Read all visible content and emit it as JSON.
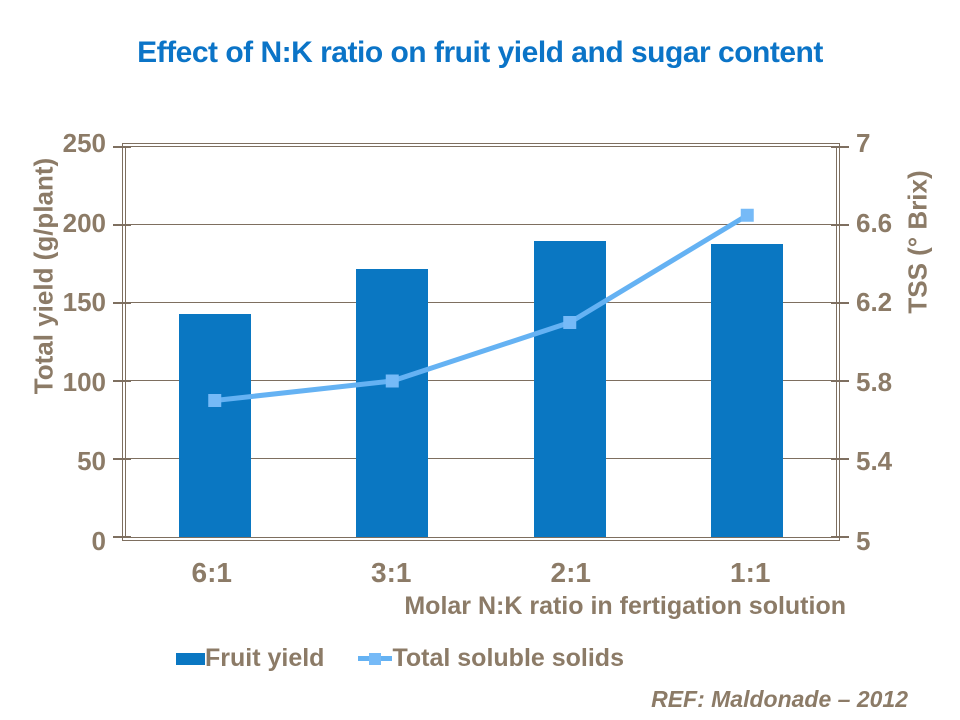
{
  "title": "Effect of N:K ratio on fruit yield and sugar content",
  "chart_data": {
    "type": "bar",
    "subtype": "bar-line combo, dual y-axes",
    "categories": [
      "6:1",
      "3:1",
      "2:1",
      "1:1"
    ],
    "series": [
      {
        "name": "Fruit yield",
        "type": "bar",
        "axis": "left",
        "values": [
          143,
          172,
          190,
          188
        ]
      },
      {
        "name": "Total soluble solids",
        "type": "line",
        "axis": "right",
        "values": [
          5.7,
          5.8,
          6.1,
          6.65
        ]
      }
    ],
    "xlabel": "Molar N:K ratio in fertigation solution",
    "ylabel_left": "Total yield (g/plant)",
    "ylabel_right": "TSS (° Brix)",
    "ylim_left": [
      0,
      250
    ],
    "ylim_right": [
      5,
      7
    ],
    "yticks_left": [
      0,
      50,
      100,
      150,
      200,
      250
    ],
    "yticks_right": [
      5,
      5.4,
      5.8,
      6.2,
      6.6,
      7
    ],
    "grid": true,
    "legend_position": "bottom"
  },
  "footer": {
    "ref": "REF: Maldonade – 2012"
  },
  "colors": {
    "title": "#0b74c7",
    "bar": "#0a77c2",
    "line": "#65b2f3",
    "marker": "#76baf7",
    "text": "#8c7b67",
    "grid": "#7e6f60"
  }
}
